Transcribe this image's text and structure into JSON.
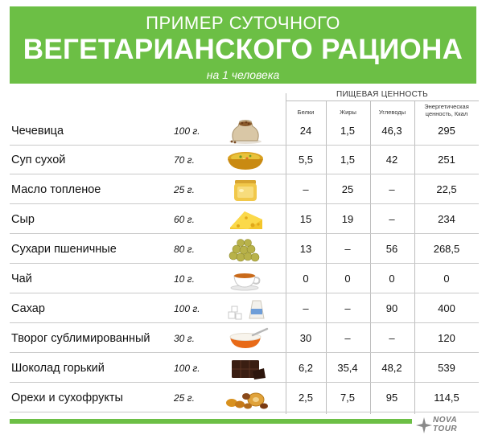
{
  "header": {
    "title_line1": "ПРИМЕР СУТОЧНОГО",
    "title_line2": "ВЕГЕТАРИАНСКОГО РАЦИОНА",
    "subtitle": "на 1 человека"
  },
  "table": {
    "group_header": "ПИЩЕВАЯ ЦЕННОСТЬ",
    "columns": [
      "Белки",
      "Жиры",
      "Углеводы",
      "Энергетическая ценность, Ккал"
    ],
    "column_line1": [
      "Белки",
      "Жиры",
      "Углеводы",
      "Энергетическая"
    ],
    "column_line2": [
      "",
      "",
      "",
      "ценность, Ккал"
    ],
    "rows": [
      {
        "name": "Чечевица",
        "amount": "100 г.",
        "icon": "lentils-sack-icon",
        "protein": "24",
        "fat": "1,5",
        "carbs": "46,3",
        "kcal": "295"
      },
      {
        "name": "Суп сухой",
        "amount": "70 г.",
        "icon": "soup-bowl-icon",
        "protein": "5,5",
        "fat": "1,5",
        "carbs": "42",
        "kcal": "251"
      },
      {
        "name": "Масло топленое",
        "amount": "25 г.",
        "icon": "ghee-jar-icon",
        "protein": "–",
        "fat": "25",
        "carbs": "–",
        "kcal": "22,5"
      },
      {
        "name": "Сыр",
        "amount": "60 г.",
        "icon": "cheese-icon",
        "protein": "15",
        "fat": "19",
        "carbs": "–",
        "kcal": "234"
      },
      {
        "name": "Сухари пшеничные",
        "amount": "80 г.",
        "icon": "crackers-icon",
        "protein": "13",
        "fat": "–",
        "carbs": "56",
        "kcal": "268,5"
      },
      {
        "name": "Чай",
        "amount": "10 г.",
        "icon": "tea-cup-icon",
        "protein": "0",
        "fat": "0",
        "carbs": "0",
        "kcal": "0"
      },
      {
        "name": "Сахар",
        "amount": "100 г.",
        "icon": "sugar-icon",
        "protein": "–",
        "fat": "–",
        "carbs": "90",
        "kcal": "400"
      },
      {
        "name": "Творог сублимированный",
        "amount": "30 г.",
        "icon": "cottage-cheese-bowl-icon",
        "protein": "30",
        "fat": "–",
        "carbs": "–",
        "kcal": "120"
      },
      {
        "name": "Шоколад горький",
        "amount": "100 г.",
        "icon": "dark-chocolate-icon",
        "protein": "6,2",
        "fat": "35,4",
        "carbs": "48,2",
        "kcal": "539"
      },
      {
        "name": "Орехи и сухофрукты",
        "amount": "25 г.",
        "icon": "nuts-dried-fruit-icon",
        "protein": "2,5",
        "fat": "7,5",
        "carbs": "95",
        "kcal": "114,5"
      }
    ]
  },
  "logo": {
    "line1": "NOVA",
    "line2": "TOUR"
  },
  "colors": {
    "accent": "#6cbf45",
    "divider": "#c9c9c9"
  }
}
